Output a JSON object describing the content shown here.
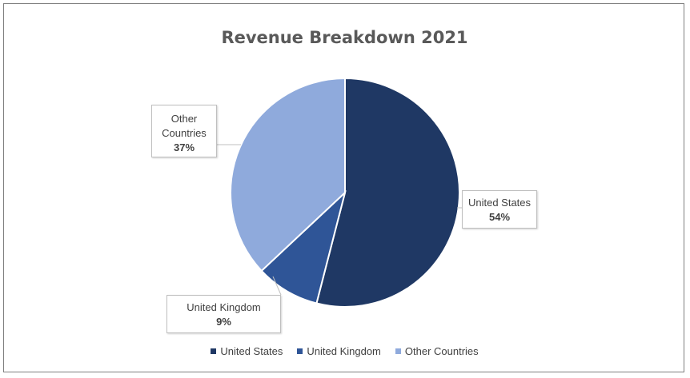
{
  "chart_data": {
    "type": "pie",
    "title": "Revenue Breakdown 2021",
    "slices": [
      {
        "label": "United States",
        "value": 54,
        "value_label": "54%",
        "color": "#1f3864"
      },
      {
        "label": "United Kingdom",
        "value": 9,
        "value_label": "9%",
        "color": "#2f5597"
      },
      {
        "label": "Other Countries",
        "value": 37,
        "value_label": "37%",
        "color": "#8faadc"
      }
    ],
    "callouts": {
      "us": {
        "lines": [
          "United States"
        ],
        "pct": "54%"
      },
      "uk": {
        "lines": [
          "United Kingdom"
        ],
        "pct": "9%"
      },
      "other": {
        "lines": [
          "Other",
          "Countries"
        ],
        "pct": "37%"
      }
    },
    "legend": {
      "placement": "bottom",
      "items": [
        "United States",
        "United Kingdom",
        "Other Countries"
      ]
    }
  }
}
